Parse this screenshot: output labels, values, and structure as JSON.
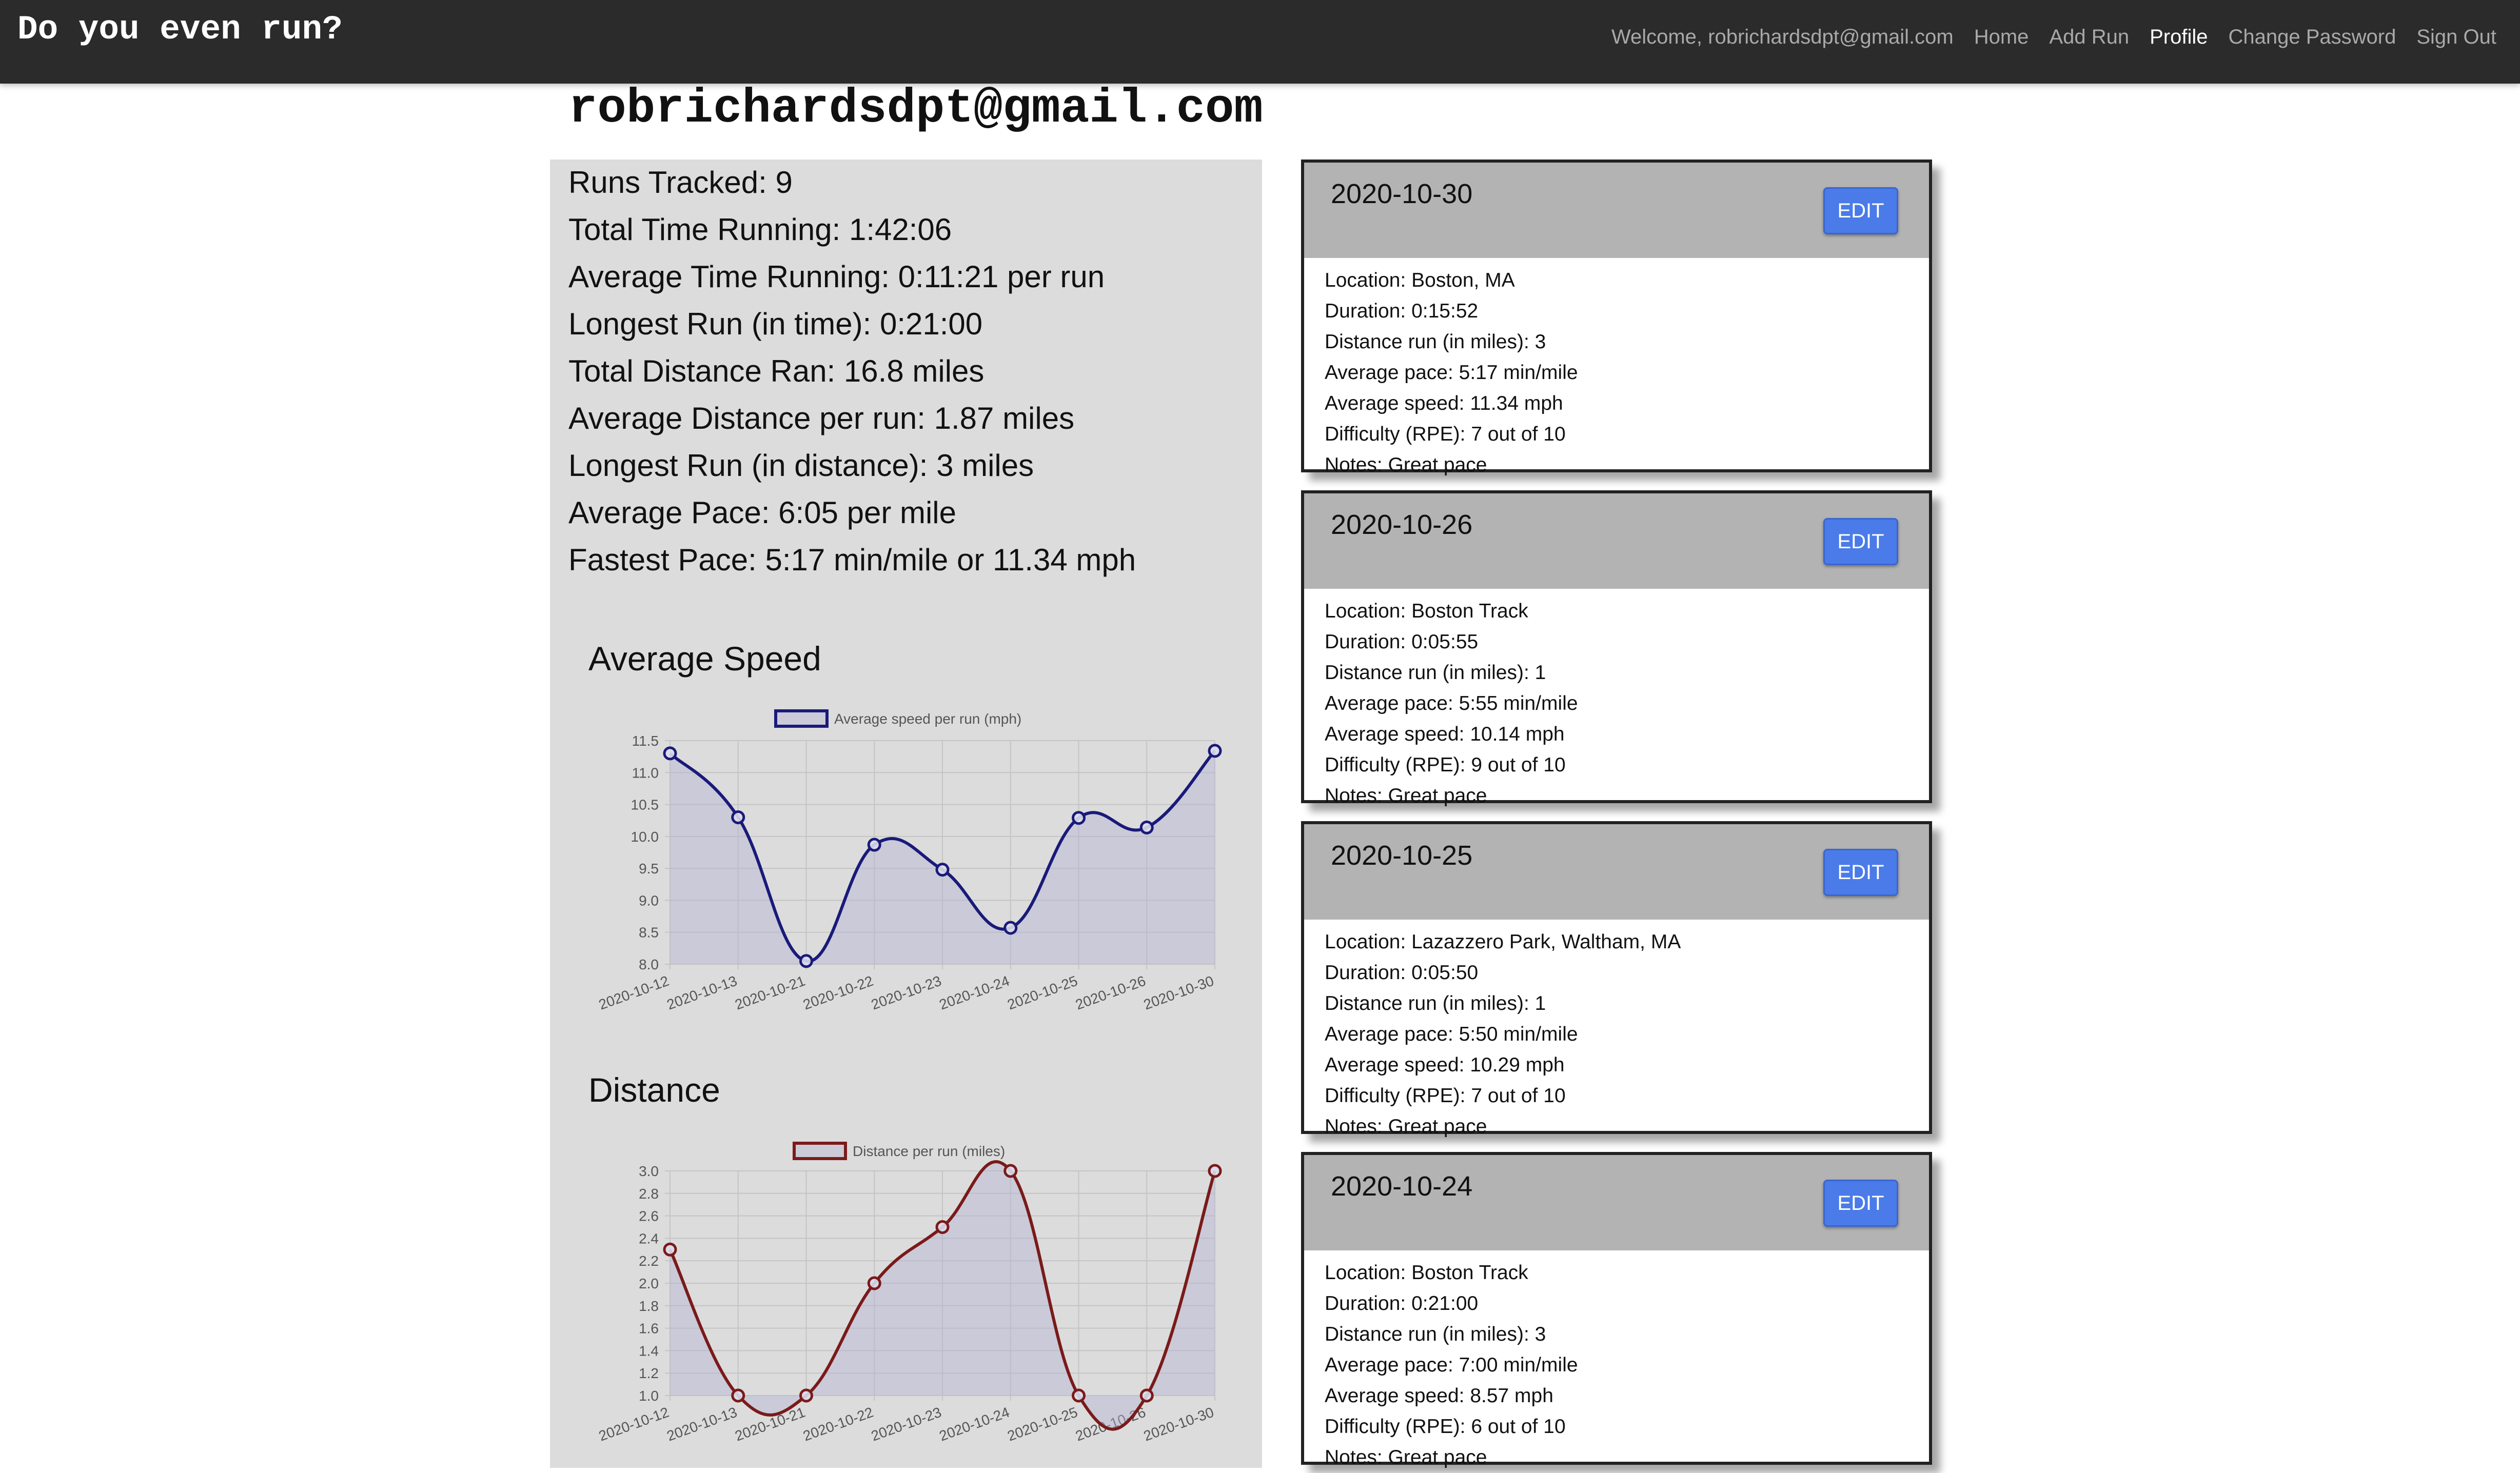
{
  "navbar": {
    "brand": "Do you even run?",
    "links": [
      {
        "label": "Welcome, robrichardsdpt@gmail.com",
        "active": false
      },
      {
        "label": "Home",
        "active": false
      },
      {
        "label": "Add Run",
        "active": false
      },
      {
        "label": "Profile",
        "active": true
      },
      {
        "label": "Change Password",
        "active": false
      },
      {
        "label": "Sign Out",
        "active": false
      }
    ]
  },
  "profile": {
    "email": "robrichardsdpt@gmail.com",
    "stats": [
      "Runs Tracked: 9",
      "Total Time Running: 1:42:06",
      "Average Time Running: 0:11:21 per run",
      "Longest Run (in time): 0:21:00",
      "Total Distance Ran: 16.8 miles",
      "Average Distance per run: 1.87 miles",
      "Longest Run (in distance): 3 miles",
      "Average Pace: 6:05 per mile",
      "Fastest Pace: 5:17 min/mile or 11.34 mph"
    ]
  },
  "chart_data": [
    {
      "type": "line",
      "title": "Average Speed",
      "legend": "Average speed per run (mph)",
      "legend_position": "top",
      "color": "#1a1a7a",
      "fill": "rgba(180,180,210,0.45)",
      "grid": true,
      "categories": [
        "2020-10-12",
        "2020-10-13",
        "2020-10-21",
        "2020-10-22",
        "2020-10-23",
        "2020-10-24",
        "2020-10-25",
        "2020-10-26",
        "2020-10-30"
      ],
      "values": [
        11.3,
        10.3,
        8.05,
        9.87,
        9.48,
        8.57,
        10.29,
        10.14,
        11.34
      ],
      "ylim": [
        8.0,
        11.5
      ],
      "yticks": [
        "8.0",
        "8.5",
        "9.0",
        "9.5",
        "10.0",
        "10.5",
        "11.0",
        "11.5"
      ]
    },
    {
      "type": "line",
      "title": "Distance",
      "legend": "Distance per run (miles)",
      "legend_position": "top",
      "color": "#7a1a1a",
      "fill": "rgba(180,180,210,0.45)",
      "grid": true,
      "categories": [
        "2020-10-12",
        "2020-10-13",
        "2020-10-21",
        "2020-10-22",
        "2020-10-23",
        "2020-10-24",
        "2020-10-25",
        "2020-10-26",
        "2020-10-30"
      ],
      "values": [
        2.3,
        1,
        1,
        2,
        2.5,
        3,
        1,
        1,
        3
      ],
      "ylim": [
        1.0,
        3.0
      ],
      "yticks": [
        "1.0",
        "1.2",
        "1.4",
        "1.6",
        "1.8",
        "2.0",
        "2.2",
        "2.4",
        "2.6",
        "2.8",
        "3.0"
      ]
    }
  ],
  "runs": [
    {
      "date": "2020-10-30",
      "edit_label": "EDIT",
      "lines": [
        "Location: Boston, MA",
        "Duration: 0:15:52",
        "Distance run (in miles): 3",
        "Average pace: 5:17 min/mile",
        "Average speed: 11.34 mph",
        "Difficulty (RPE): 7 out of 10",
        "Notes: Great pace"
      ]
    },
    {
      "date": "2020-10-26",
      "edit_label": "EDIT",
      "lines": [
        "Location: Boston Track",
        "Duration: 0:05:55",
        "Distance run (in miles): 1",
        "Average pace: 5:55 min/mile",
        "Average speed: 10.14 mph",
        "Difficulty (RPE): 9 out of 10",
        "Notes: Great pace"
      ]
    },
    {
      "date": "2020-10-25",
      "edit_label": "EDIT",
      "lines": [
        "Location: Lazazzero Park, Waltham, MA",
        "Duration: 0:05:50",
        "Distance run (in miles): 1",
        "Average pace: 5:50 min/mile",
        "Average speed: 10.29 mph",
        "Difficulty (RPE): 7 out of 10",
        "Notes: Great pace"
      ]
    },
    {
      "date": "2020-10-24",
      "edit_label": "EDIT",
      "lines": [
        "Location: Boston Track",
        "Duration: 0:21:00",
        "Distance run (in miles): 3",
        "Average pace: 7:00 min/mile",
        "Average speed: 8.57 mph",
        "Difficulty (RPE): 6 out of 10",
        "Notes: Great pace"
      ]
    }
  ]
}
